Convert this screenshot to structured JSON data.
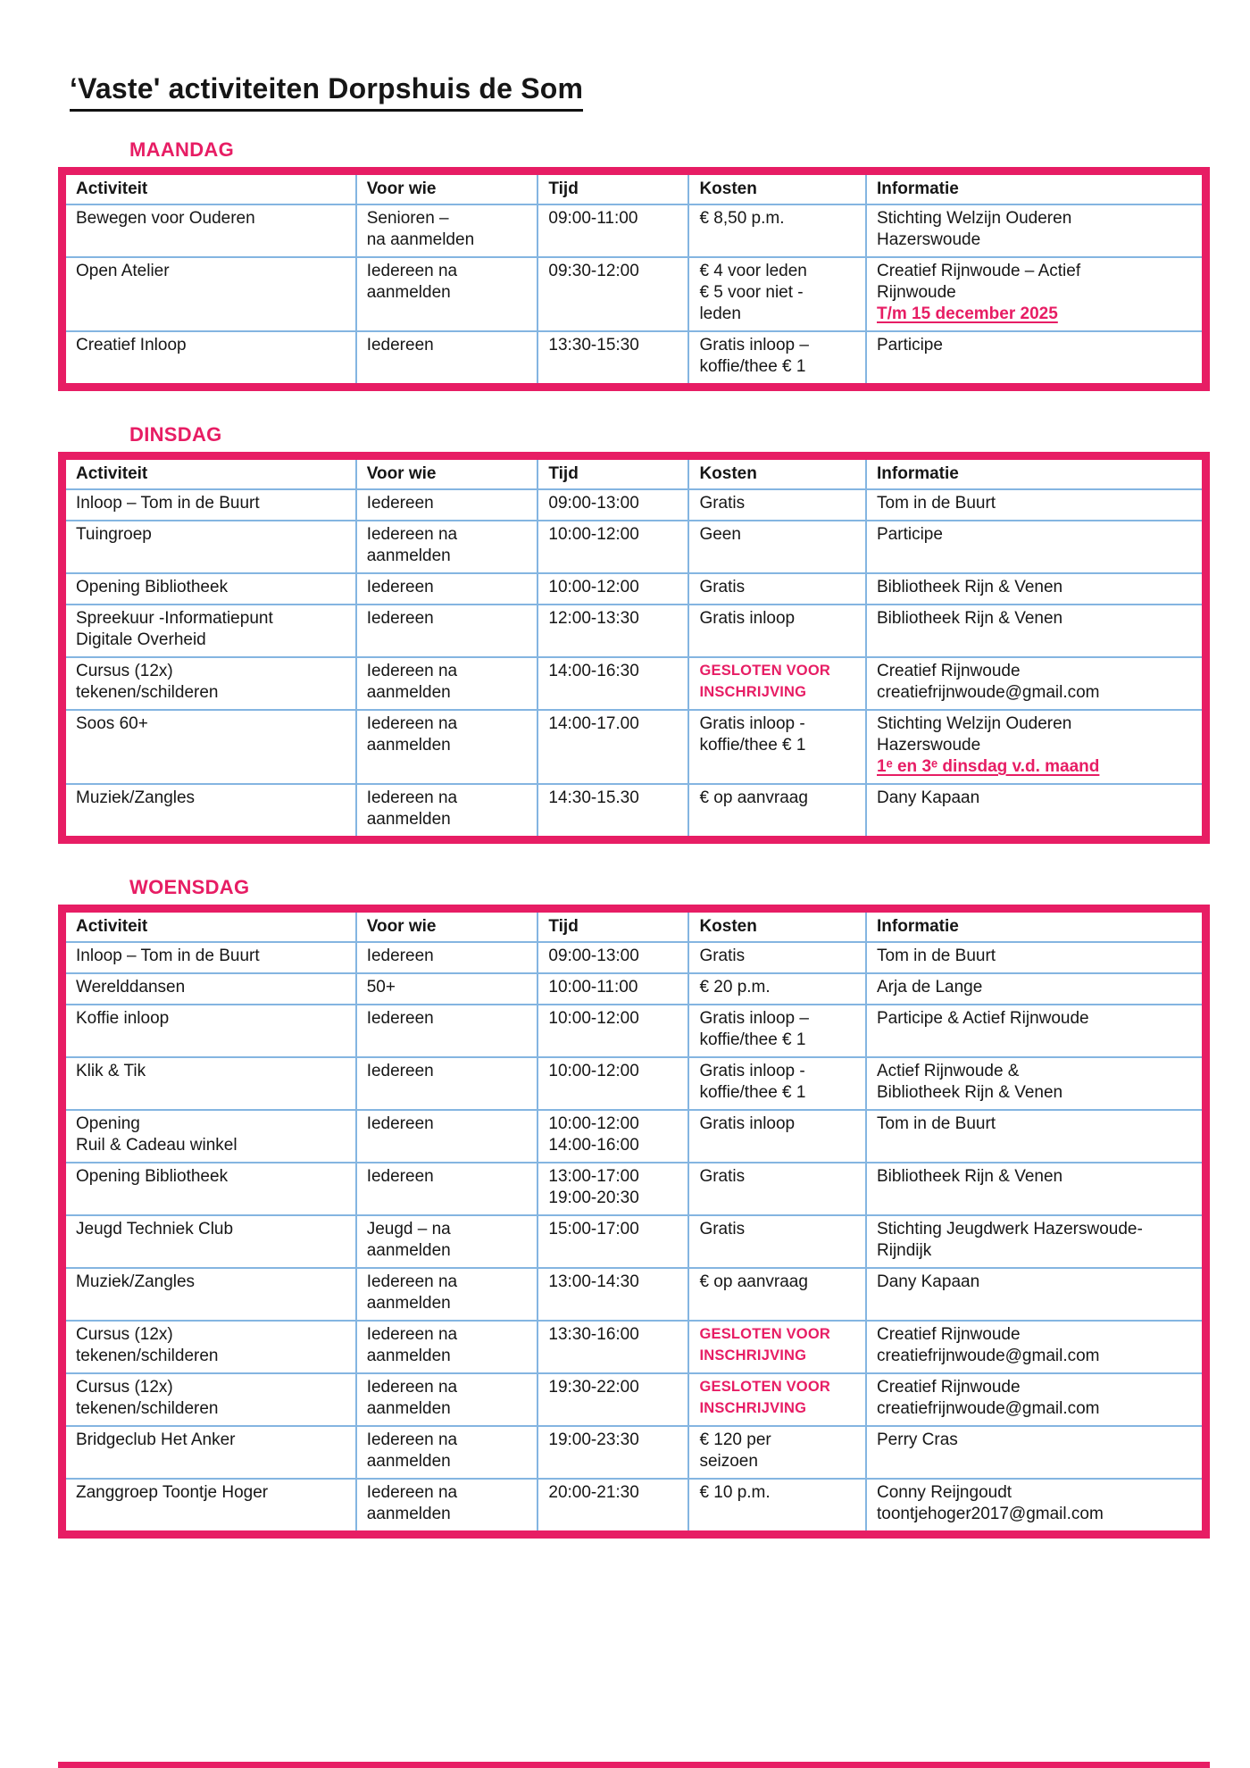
{
  "page": {
    "title": "‘Vaste' activiteiten Dorpshuis de Som"
  },
  "colors": {
    "accent": "#E71D64",
    "grid": "#84B5E1",
    "text": "#161616"
  },
  "table": {
    "columns": [
      {
        "key": "activiteit",
        "label": "Activiteit"
      },
      {
        "key": "voor_wie",
        "label": "Voor wie"
      },
      {
        "key": "tijd",
        "label": "Tijd"
      },
      {
        "key": "kosten",
        "label": "Kosten"
      },
      {
        "key": "informatie",
        "label": "Informatie"
      }
    ]
  },
  "days": [
    {
      "label": "MAANDAG",
      "rows": [
        {
          "activiteit": [
            "Bewegen voor Ouderen"
          ],
          "voor_wie": [
            "Senioren –",
            "na aanmelden"
          ],
          "tijd": [
            "09:00-11:00"
          ],
          "kosten": [
            "€ 8,50 p.m."
          ],
          "informatie": [
            "Stichting Welzijn Ouderen",
            "Hazerswoude"
          ]
        },
        {
          "activiteit": [
            "Open Atelier"
          ],
          "voor_wie": [
            "Iedereen na",
            "aanmelden"
          ],
          "tijd": [
            "09:30-12:00"
          ],
          "kosten": [
            "€ 4 voor leden",
            "€ 5 voor niet -",
            "leden"
          ],
          "informatie": [
            "Creatief Rijnwoude – Actief",
            "Rijnwoude",
            {
              "text": "T/m 15 december 2025",
              "style": "accent-underline"
            }
          ]
        },
        {
          "activiteit": [
            "Creatief Inloop"
          ],
          "voor_wie": [
            "Iedereen"
          ],
          "tijd": [
            "13:30-15:30"
          ],
          "kosten": [
            "Gratis inloop –",
            "koffie/thee € 1"
          ],
          "informatie": [
            "Participe"
          ]
        }
      ]
    },
    {
      "label": "DINSDAG",
      "rows": [
        {
          "activiteit": [
            "Inloop – Tom in de Buurt"
          ],
          "voor_wie": [
            "Iedereen"
          ],
          "tijd": [
            "09:00-13:00"
          ],
          "kosten": [
            "Gratis"
          ],
          "informatie": [
            "Tom in de Buurt"
          ]
        },
        {
          "activiteit": [
            "Tuingroep"
          ],
          "voor_wie": [
            "Iedereen na",
            "aanmelden"
          ],
          "tijd": [
            "10:00-12:00"
          ],
          "kosten": [
            "Geen"
          ],
          "informatie": [
            "Participe"
          ]
        },
        {
          "activiteit": [
            "Opening Bibliotheek"
          ],
          "voor_wie": [
            "Iedereen"
          ],
          "tijd": [
            "10:00-12:00"
          ],
          "kosten": [
            "Gratis"
          ],
          "informatie": [
            "Bibliotheek Rijn & Venen"
          ]
        },
        {
          "activiteit": [
            "Spreekuur -Informatiepunt",
            "Digitale Overheid"
          ],
          "voor_wie": [
            "Iedereen"
          ],
          "tijd": [
            "12:00-13:30"
          ],
          "kosten": [
            "Gratis inloop"
          ],
          "informatie": [
            "Bibliotheek Rijn & Venen"
          ]
        },
        {
          "activiteit": [
            "Cursus (12x)",
            "tekenen/schilderen"
          ],
          "voor_wie": [
            "Iedereen na",
            "aanmelden"
          ],
          "tijd": [
            "14:00-16:30"
          ],
          "kosten": [
            {
              "text": "GESLOTEN VOOR",
              "style": "accent-caps"
            },
            {
              "text": "INSCHRIJVING",
              "style": "accent-caps"
            }
          ],
          "informatie": [
            "Creatief Rijnwoude",
            "creatiefrijnwoude@gmail.com"
          ]
        },
        {
          "activiteit": [
            "Soos 60+"
          ],
          "voor_wie": [
            "Iedereen na",
            "aanmelden"
          ],
          "tijd": [
            "14:00-17.00"
          ],
          "kosten": [
            "Gratis inloop -",
            "koffie/thee € 1"
          ],
          "informatie": [
            "Stichting Welzijn Ouderen",
            "Hazerswoude",
            {
              "text": "1ᵉ en 3ᵉ dinsdag v.d. maand",
              "style": "accent-underline"
            }
          ]
        },
        {
          "activiteit": [
            "Muziek/Zangles"
          ],
          "voor_wie": [
            "Iedereen na",
            "aanmelden"
          ],
          "tijd": [
            "14:30-15.30"
          ],
          "kosten": [
            "€ op aanvraag"
          ],
          "informatie": [
            "Dany Kapaan"
          ]
        }
      ]
    },
    {
      "label": "WOENSDAG",
      "rows": [
        {
          "activiteit": [
            "Inloop – Tom in de Buurt"
          ],
          "voor_wie": [
            "Iedereen"
          ],
          "tijd": [
            "09:00-13:00"
          ],
          "kosten": [
            "Gratis"
          ],
          "informatie": [
            "Tom in de Buurt"
          ]
        },
        {
          "activiteit": [
            "Werelddansen"
          ],
          "voor_wie": [
            "50+"
          ],
          "tijd": [
            "10:00-11:00"
          ],
          "kosten": [
            "€ 20 p.m."
          ],
          "informatie": [
            "Arja de Lange"
          ]
        },
        {
          "activiteit": [
            "Koffie inloop"
          ],
          "voor_wie": [
            "Iedereen"
          ],
          "tijd": [
            "10:00-12:00"
          ],
          "kosten": [
            "Gratis inloop –",
            "koffie/thee € 1"
          ],
          "informatie": [
            "Participe & Actief Rijnwoude"
          ]
        },
        {
          "activiteit": [
            "Klik & Tik"
          ],
          "voor_wie": [
            "Iedereen"
          ],
          "tijd": [
            "10:00-12:00"
          ],
          "kosten": [
            "Gratis inloop -",
            "koffie/thee € 1"
          ],
          "informatie": [
            "Actief Rijnwoude &",
            "Bibliotheek Rijn & Venen"
          ]
        },
        {
          "activiteit": [
            "Opening",
            "Ruil & Cadeau winkel"
          ],
          "voor_wie": [
            "Iedereen"
          ],
          "tijd": [
            "10:00-12:00",
            "14:00-16:00"
          ],
          "kosten": [
            "Gratis inloop"
          ],
          "informatie": [
            "Tom in de Buurt"
          ]
        },
        {
          "activiteit": [
            "Opening Bibliotheek"
          ],
          "voor_wie": [
            "Iedereen"
          ],
          "tijd": [
            "13:00-17:00",
            "19:00-20:30"
          ],
          "kosten": [
            "Gratis"
          ],
          "informatie": [
            "Bibliotheek Rijn & Venen"
          ]
        },
        {
          "activiteit": [
            "Jeugd Techniek Club"
          ],
          "voor_wie": [
            "Jeugd – na",
            "aanmelden"
          ],
          "tijd": [
            "15:00-17:00"
          ],
          "kosten": [
            "Gratis"
          ],
          "informatie": [
            "Stichting Jeugdwerk Hazerswoude-",
            "Rijndijk"
          ]
        },
        {
          "activiteit": [
            "Muziek/Zangles"
          ],
          "voor_wie": [
            "Iedereen na",
            "aanmelden"
          ],
          "tijd": [
            "13:00-14:30"
          ],
          "kosten": [
            "€ op aanvraag"
          ],
          "informatie": [
            "Dany Kapaan"
          ]
        },
        {
          "activiteit": [
            "Cursus (12x)",
            "tekenen/schilderen"
          ],
          "voor_wie": [
            "Iedereen na",
            "aanmelden"
          ],
          "tijd": [
            "13:30-16:00"
          ],
          "kosten": [
            {
              "text": "GESLOTEN VOOR",
              "style": "accent-caps"
            },
            {
              "text": "INSCHRIJVING",
              "style": "accent-caps"
            }
          ],
          "informatie": [
            "Creatief Rijnwoude",
            "creatiefrijnwoude@gmail.com"
          ]
        },
        {
          "activiteit": [
            "Cursus (12x)",
            "tekenen/schilderen"
          ],
          "voor_wie": [
            "Iedereen na",
            "aanmelden"
          ],
          "tijd": [
            "19:30-22:00"
          ],
          "kosten": [
            {
              "text": "GESLOTEN VOOR",
              "style": "accent-caps"
            },
            {
              "text": "INSCHRIJVING",
              "style": "accent-caps"
            }
          ],
          "informatie": [
            "Creatief Rijnwoude",
            "creatiefrijnwoude@gmail.com"
          ]
        },
        {
          "activiteit": [
            "Bridgeclub Het Anker"
          ],
          "voor_wie": [
            "Iedereen na",
            "aanmelden"
          ],
          "tijd": [
            "19:00-23:30"
          ],
          "kosten": [
            "€ 120 per",
            "seizoen"
          ],
          "informatie": [
            "Perry Cras"
          ]
        },
        {
          "activiteit": [
            "Zanggroep Toontje Hoger"
          ],
          "voor_wie": [
            "Iedereen na",
            "aanmelden"
          ],
          "tijd": [
            "20:00-21:30"
          ],
          "kosten": [
            "€ 10 p.m."
          ],
          "informatie": [
            "Conny Reijngoudt",
            "toontjehoger2017@gmail.com"
          ]
        }
      ]
    }
  ]
}
